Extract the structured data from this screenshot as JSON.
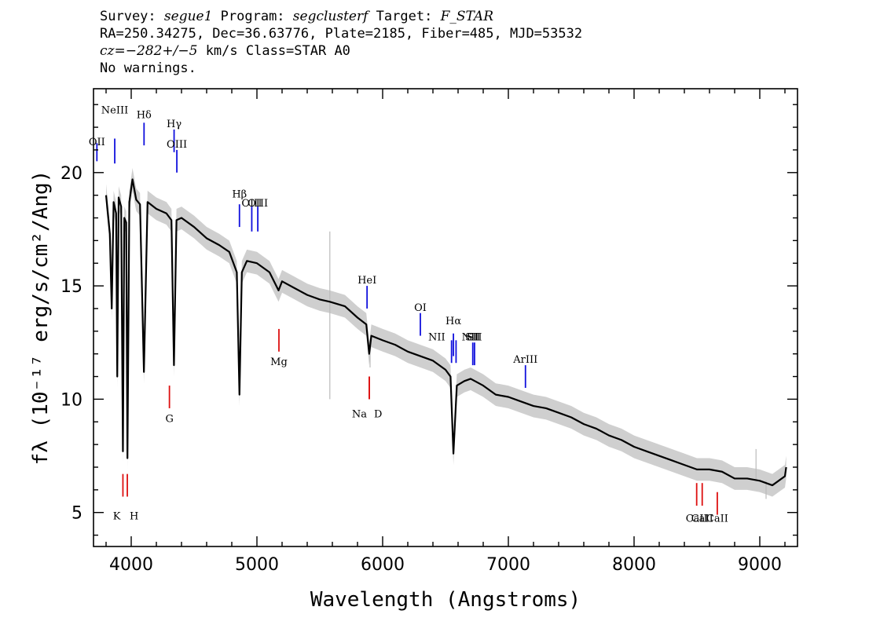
{
  "header": {
    "line1": {
      "survey_label": "Survey:",
      "survey": "segue1",
      "program_label": "Program:",
      "program": "segclusterf",
      "target_label": "Target:",
      "target": "F_STAR"
    },
    "line2": "RA=250.34275, Dec=36.63776, Plate=2185, Fiber=485, MJD=53532",
    "line3": {
      "cz": "cz=−282+/−5",
      "rest": " km/s Class=STAR A0"
    },
    "line4": "No warnings."
  },
  "chart_data": {
    "type": "line",
    "xlabel": "Wavelength (Angstroms)",
    "ylabel": "fλ (10⁻¹⁷ erg/s/cm²/Ang)",
    "xlim": [
      3700,
      9300
    ],
    "ylim": [
      3.5,
      23.7
    ],
    "x_ticks": [
      4000,
      5000,
      6000,
      7000,
      8000,
      9000
    ],
    "y_ticks": [
      5,
      10,
      15,
      20
    ],
    "grid": false,
    "series": [
      {
        "color": "#000000",
        "points": [
          [
            3800,
            19.0
          ],
          [
            3830,
            17.3
          ],
          [
            3845,
            14.0
          ],
          [
            3860,
            18.7
          ],
          [
            3880,
            18.2
          ],
          [
            3889,
            11.0
          ],
          [
            3900,
            18.9
          ],
          [
            3920,
            18.5
          ],
          [
            3934,
            7.7
          ],
          [
            3945,
            18.0
          ],
          [
            3960,
            17.8
          ],
          [
            3970,
            7.4
          ],
          [
            3985,
            18.7
          ],
          [
            4010,
            19.7
          ],
          [
            4040,
            18.8
          ],
          [
            4070,
            18.6
          ],
          [
            4101,
            11.2
          ],
          [
            4130,
            18.7
          ],
          [
            4200,
            18.4
          ],
          [
            4280,
            18.2
          ],
          [
            4320,
            17.9
          ],
          [
            4340,
            11.5
          ],
          [
            4360,
            17.9
          ],
          [
            4400,
            18.0
          ],
          [
            4500,
            17.6
          ],
          [
            4600,
            17.1
          ],
          [
            4700,
            16.8
          ],
          [
            4780,
            16.5
          ],
          [
            4840,
            15.6
          ],
          [
            4861,
            10.2
          ],
          [
            4880,
            15.6
          ],
          [
            4920,
            16.1
          ],
          [
            5000,
            16.0
          ],
          [
            5100,
            15.6
          ],
          [
            5172,
            14.8
          ],
          [
            5200,
            15.2
          ],
          [
            5300,
            14.9
          ],
          [
            5400,
            14.6
          ],
          [
            5500,
            14.4
          ],
          [
            5580,
            14.3
          ],
          [
            5700,
            14.1
          ],
          [
            5800,
            13.6
          ],
          [
            5870,
            13.3
          ],
          [
            5893,
            12.0
          ],
          [
            5910,
            12.8
          ],
          [
            6000,
            12.6
          ],
          [
            6100,
            12.4
          ],
          [
            6200,
            12.1
          ],
          [
            6300,
            11.9
          ],
          [
            6400,
            11.7
          ],
          [
            6500,
            11.3
          ],
          [
            6540,
            11.0
          ],
          [
            6563,
            7.6
          ],
          [
            6590,
            10.6
          ],
          [
            6650,
            10.8
          ],
          [
            6700,
            10.9
          ],
          [
            6800,
            10.6
          ],
          [
            6900,
            10.2
          ],
          [
            7000,
            10.1
          ],
          [
            7100,
            9.9
          ],
          [
            7200,
            9.7
          ],
          [
            7300,
            9.6
          ],
          [
            7400,
            9.4
          ],
          [
            7500,
            9.2
          ],
          [
            7600,
            8.9
          ],
          [
            7700,
            8.7
          ],
          [
            7800,
            8.4
          ],
          [
            7900,
            8.2
          ],
          [
            8000,
            7.9
          ],
          [
            8100,
            7.7
          ],
          [
            8200,
            7.5
          ],
          [
            8300,
            7.3
          ],
          [
            8400,
            7.1
          ],
          [
            8500,
            6.9
          ],
          [
            8600,
            6.9
          ],
          [
            8700,
            6.8
          ],
          [
            8800,
            6.5
          ],
          [
            8900,
            6.5
          ],
          [
            9000,
            6.4
          ],
          [
            9100,
            6.2
          ],
          [
            9200,
            6.6
          ],
          [
            9210,
            7.0
          ]
        ]
      }
    ],
    "error_band": {
      "color": "#bbbbbb",
      "half_width": 0.5,
      "note_values": [
        [
          5580,
          17.4
        ],
        [
          5580,
          10.0
        ],
        [
          5900,
          11.4
        ],
        [
          8970,
          7.8
        ],
        [
          9050,
          5.6
        ]
      ]
    },
    "emission_lines": [
      {
        "label": "OII",
        "x": 3727,
        "y_text": 21.2,
        "y0": 20.5,
        "y1": 21.3
      },
      {
        "label": "NeIII",
        "x": 3869,
        "y_text": 22.6,
        "y0": 20.4,
        "y1": 21.5
      },
      {
        "label": "Hδ",
        "x": 4102,
        "y_text": 22.4,
        "y0": 21.2,
        "y1": 22.2
      },
      {
        "label": "Hγ",
        "x": 4341,
        "y_text": 22.0,
        "y0": 20.9,
        "y1": 21.9
      },
      {
        "label": "OIII",
        "x": 4363,
        "y_text": 21.1,
        "y0": 20.0,
        "y1": 21.0
      },
      {
        "label": "Hβ",
        "x": 4861,
        "y_text": 18.9,
        "y0": 17.6,
        "y1": 18.6
      },
      {
        "label": "OIII",
        "x": 4959,
        "y_text": 18.5,
        "y0": 17.4,
        "y1": 18.5
      },
      {
        "label": "OIII",
        "x": 5007,
        "y_text": 18.5,
        "y0": 17.4,
        "y1": 18.5
      },
      {
        "label": "HeI",
        "x": 5876,
        "y_text": 15.1,
        "y0": 14.0,
        "y1": 15.0
      },
      {
        "label": "OI",
        "x": 6300,
        "y_text": 13.9,
        "y0": 12.8,
        "y1": 13.8
      },
      {
        "label": "NII",
        "x": 6548,
        "y_text": 12.6,
        "y0": 11.6,
        "y1": 12.6
      },
      {
        "label": "Hα",
        "x": 6563,
        "y_text": 13.3,
        "y0": 11.9,
        "y1": 12.9
      },
      {
        "label": "NII",
        "x": 6584,
        "y_text": 12.6,
        "y0": 11.6,
        "y1": 12.6
      },
      {
        "label": "SII",
        "x": 6717,
        "y_text": 12.6,
        "y0": 11.5,
        "y1": 12.5
      },
      {
        "label": "SII",
        "x": 6731,
        "y_text": 12.6,
        "y0": 11.5,
        "y1": 12.5
      },
      {
        "label": "ArIII",
        "x": 7136,
        "y_text": 11.6,
        "y0": 10.5,
        "y1": 11.5
      }
    ],
    "absorption_lines": [
      {
        "label": "K",
        "x": 3934,
        "y_text": 4.7,
        "y0": 5.7,
        "y1": 6.7
      },
      {
        "label": "H",
        "x": 3969,
        "y_text": 4.7,
        "y0": 5.7,
        "y1": 6.7
      },
      {
        "label": "G",
        "x": 4304,
        "y_text": 9.0,
        "y0": 9.6,
        "y1": 10.6
      },
      {
        "label": "Mg",
        "x": 5175,
        "y_text": 11.5,
        "y0": 12.1,
        "y1": 13.1
      },
      {
        "label": "Na",
        "x": 5894,
        "y_text": 9.2,
        "y0": 10.0,
        "y1": 11.0
      },
      {
        "label": "D",
        "x": 5894,
        "y_text": 9.2,
        "y0": 10.0,
        "y1": 11.0
      },
      {
        "label": "CaII",
        "x": 8498,
        "y_text": 4.6,
        "y0": 5.3,
        "y1": 6.3
      },
      {
        "label": "CaII",
        "x": 8542,
        "y_text": 4.6,
        "y0": 5.3,
        "y1": 6.3
      },
      {
        "label": "CaII",
        "x": 8662,
        "y_text": 4.6,
        "y0": 4.9,
        "y1": 5.9
      }
    ],
    "colors": {
      "emission": "#1010dd",
      "absorption": "#dd1010",
      "axes": "#000000"
    }
  }
}
